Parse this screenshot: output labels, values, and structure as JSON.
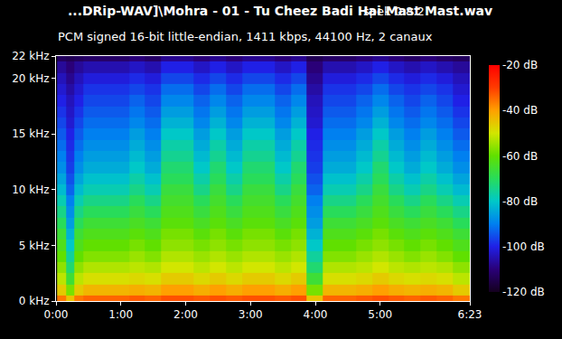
{
  "chart_data": {
    "type": "heatmap",
    "title": "...DRip-WAV]\\Mohra - 01 - Tu Cheez Badi Hai Mast Mast.wav",
    "subtitle": "PCM signed 16-bit little-endian, 1411 kbps, 44100 Hz, 2 canaux",
    "annotations": [
      "spek 0.8.2"
    ],
    "x": [
      5,
      13,
      20,
      30,
      45,
      60,
      75,
      90,
      105,
      120,
      135,
      150,
      165,
      180,
      195,
      210,
      225,
      239,
      255,
      270,
      285,
      300,
      315,
      330,
      345,
      360,
      375,
      381
    ],
    "y": [
      0,
      1,
      2,
      3,
      4,
      5,
      6,
      7,
      8,
      9,
      10,
      11,
      12,
      13,
      14,
      15,
      16,
      17,
      18,
      19,
      20,
      21,
      22
    ],
    "z": [
      [
        -36,
        -45,
        -36,
        -34,
        -34,
        -34,
        -33,
        -34,
        -32,
        -32,
        -33,
        -32,
        -33,
        -32,
        -32,
        -33,
        -32,
        -45,
        -34,
        -34,
        -33,
        -32,
        -33,
        -34,
        -33,
        -34,
        -36,
        -36
      ],
      [
        -46,
        -58,
        -46,
        -43,
        -43,
        -43,
        -42,
        -43,
        -40,
        -40,
        -42,
        -40,
        -42,
        -40,
        -40,
        -42,
        -40,
        -58,
        -43,
        -43,
        -42,
        -40,
        -42,
        -43,
        -42,
        -43,
        -46,
        -46
      ],
      [
        -52,
        -66,
        -52,
        -49,
        -49,
        -49,
        -48,
        -49,
        -46,
        -46,
        -48,
        -46,
        -48,
        -46,
        -46,
        -48,
        -46,
        -66,
        -49,
        -49,
        -48,
        -46,
        -48,
        -49,
        -48,
        -49,
        -52,
        -52
      ],
      [
        -56,
        -72,
        -56,
        -53,
        -53,
        -53,
        -52,
        -53,
        -50,
        -50,
        -52,
        -50,
        -52,
        -50,
        -50,
        -52,
        -50,
        -72,
        -53,
        -53,
        -52,
        -50,
        -52,
        -53,
        -52,
        -53,
        -56,
        -56
      ],
      [
        -60,
        -76,
        -60,
        -57,
        -57,
        -57,
        -55,
        -57,
        -53,
        -53,
        -55,
        -53,
        -55,
        -53,
        -53,
        -55,
        -53,
        -76,
        -57,
        -57,
        -55,
        -53,
        -55,
        -57,
        -55,
        -57,
        -60,
        -60
      ],
      [
        -63,
        -80,
        -63,
        -60,
        -60,
        -60,
        -58,
        -60,
        -56,
        -56,
        -58,
        -56,
        -58,
        -56,
        -56,
        -58,
        -56,
        -80,
        -60,
        -60,
        -58,
        -56,
        -58,
        -60,
        -58,
        -60,
        -63,
        -63
      ],
      [
        -66,
        -83,
        -66,
        -63,
        -63,
        -63,
        -61,
        -63,
        -58,
        -58,
        -61,
        -58,
        -61,
        -58,
        -58,
        -61,
        -58,
        -83,
        -63,
        -63,
        -61,
        -58,
        -61,
        -63,
        -61,
        -63,
        -66,
        -66
      ],
      [
        -70,
        -86,
        -70,
        -66,
        -66,
        -66,
        -64,
        -66,
        -61,
        -61,
        -64,
        -61,
        -64,
        -61,
        -61,
        -64,
        -61,
        -86,
        -66,
        -66,
        -64,
        -61,
        -64,
        -66,
        -64,
        -66,
        -70,
        -70
      ],
      [
        -74,
        -88,
        -74,
        -70,
        -70,
        -70,
        -67,
        -70,
        -63,
        -63,
        -67,
        -63,
        -67,
        -63,
        -63,
        -67,
        -63,
        -88,
        -70,
        -70,
        -67,
        -63,
        -67,
        -70,
        -67,
        -70,
        -74,
        -74
      ],
      [
        -78,
        -90,
        -78,
        -74,
        -74,
        -74,
        -70,
        -74,
        -65,
        -65,
        -70,
        -65,
        -70,
        -65,
        -65,
        -70,
        -65,
        -90,
        -74,
        -74,
        -70,
        -65,
        -70,
        -74,
        -70,
        -74,
        -78,
        -78
      ],
      [
        -82,
        -93,
        -82,
        -78,
        -78,
        -78,
        -74,
        -78,
        -67,
        -67,
        -74,
        -67,
        -74,
        -67,
        -67,
        -74,
        -67,
        -93,
        -78,
        -78,
        -74,
        -67,
        -74,
        -78,
        -74,
        -78,
        -82,
        -82
      ],
      [
        -85,
        -95,
        -85,
        -81,
        -81,
        -81,
        -77,
        -81,
        -70,
        -70,
        -77,
        -70,
        -77,
        -70,
        -70,
        -77,
        -70,
        -95,
        -81,
        -81,
        -77,
        -70,
        -77,
        -81,
        -77,
        -81,
        -85,
        -85
      ],
      [
        -88,
        -97,
        -88,
        -84,
        -84,
        -84,
        -80,
        -84,
        -72,
        -72,
        -80,
        -72,
        -80,
        -72,
        -72,
        -80,
        -72,
        -97,
        -84,
        -84,
        -80,
        -72,
        -80,
        -84,
        -80,
        -84,
        -88,
        -88
      ],
      [
        -90,
        -98,
        -90,
        -86,
        -86,
        -86,
        -82,
        -86,
        -75,
        -75,
        -82,
        -75,
        -82,
        -75,
        -75,
        -82,
        -75,
        -98,
        -86,
        -86,
        -82,
        -75,
        -82,
        -86,
        -82,
        -86,
        -90,
        -90
      ],
      [
        -92,
        -99,
        -92,
        -88,
        -88,
        -88,
        -84,
        -88,
        -77,
        -77,
        -84,
        -77,
        -84,
        -77,
        -77,
        -84,
        -77,
        -99,
        -88,
        -88,
        -84,
        -77,
        -84,
        -88,
        -84,
        -88,
        -92,
        -92
      ],
      [
        -94,
        -100,
        -94,
        -90,
        -90,
        -90,
        -86,
        -90,
        -80,
        -80,
        -86,
        -80,
        -86,
        -80,
        -80,
        -86,
        -80,
        -100,
        -90,
        -90,
        -86,
        -80,
        -86,
        -90,
        -86,
        -90,
        -94,
        -94
      ],
      [
        -96,
        -102,
        -96,
        -92,
        -92,
        -92,
        -89,
        -92,
        -83,
        -83,
        -89,
        -83,
        -89,
        -83,
        -83,
        -89,
        -83,
        -102,
        -92,
        -92,
        -89,
        -83,
        -89,
        -92,
        -89,
        -92,
        -96,
        -96
      ],
      [
        -98,
        -103,
        -98,
        -94,
        -94,
        -94,
        -91,
        -94,
        -86,
        -86,
        -91,
        -86,
        -91,
        -86,
        -86,
        -91,
        -86,
        -103,
        -94,
        -94,
        -91,
        -86,
        -91,
        -94,
        -91,
        -94,
        -98,
        -98
      ],
      [
        -100,
        -104,
        -100,
        -96,
        -96,
        -96,
        -93,
        -96,
        -89,
        -89,
        -93,
        -89,
        -93,
        -89,
        -89,
        -93,
        -89,
        -104,
        -96,
        -96,
        -93,
        -89,
        -93,
        -96,
        -93,
        -96,
        -100,
        -100
      ],
      [
        -102,
        -106,
        -102,
        -98,
        -98,
        -98,
        -96,
        -98,
        -92,
        -92,
        -96,
        -92,
        -96,
        -92,
        -92,
        -96,
        -92,
        -106,
        -98,
        -98,
        -96,
        -92,
        -96,
        -98,
        -96,
        -98,
        -102,
        -102
      ],
      [
        -104,
        -108,
        -104,
        -101,
        -101,
        -101,
        -99,
        -101,
        -96,
        -96,
        -99,
        -96,
        -99,
        -96,
        -96,
        -99,
        -96,
        -108,
        -101,
        -101,
        -99,
        -96,
        -99,
        -101,
        -99,
        -101,
        -104,
        -104
      ],
      [
        -107,
        -110,
        -107,
        -105,
        -105,
        -105,
        -103,
        -105,
        -100,
        -100,
        -103,
        -100,
        -103,
        -100,
        -100,
        -103,
        -100,
        -110,
        -105,
        -105,
        -103,
        -100,
        -103,
        -105,
        -103,
        -105,
        -107,
        -107
      ],
      [
        -113,
        -114,
        -113,
        -112,
        -112,
        -112,
        -110,
        -112,
        -108,
        -108,
        -110,
        -108,
        -110,
        -108,
        -108,
        -110,
        -108,
        -114,
        -112,
        -112,
        -110,
        -108,
        -110,
        -112,
        -110,
        -112,
        -113,
        -113
      ]
    ],
    "xlim": [
      0,
      383
    ],
    "xticks": [
      {
        "value": 0,
        "label": "0:00"
      },
      {
        "value": 60,
        "label": "1:00"
      },
      {
        "value": 120,
        "label": "2:00"
      },
      {
        "value": 180,
        "label": "3:00"
      },
      {
        "value": 240,
        "label": "4:00"
      },
      {
        "value": 300,
        "label": "5:00"
      },
      {
        "value": 383,
        "label": "6:23"
      }
    ],
    "ylim": [
      0,
      22
    ],
    "yticks": [
      {
        "value": 0,
        "label": "0 kHz"
      },
      {
        "value": 5,
        "label": "5 kHz"
      },
      {
        "value": 10,
        "label": "10 kHz"
      },
      {
        "value": 15,
        "label": "15 kHz"
      },
      {
        "value": 20,
        "label": "20 kHz"
      },
      {
        "value": 22,
        "label": "22 kHz"
      }
    ],
    "zlim": [
      -120,
      -20
    ],
    "zticks": [
      {
        "value": -20,
        "label": "-20 dB"
      },
      {
        "value": -40,
        "label": "-40 dB"
      },
      {
        "value": -60,
        "label": "-60 dB"
      },
      {
        "value": -80,
        "label": "-80 dB"
      },
      {
        "value": -100,
        "label": "-100 dB"
      },
      {
        "value": -120,
        "label": "-120 dB"
      }
    ]
  }
}
